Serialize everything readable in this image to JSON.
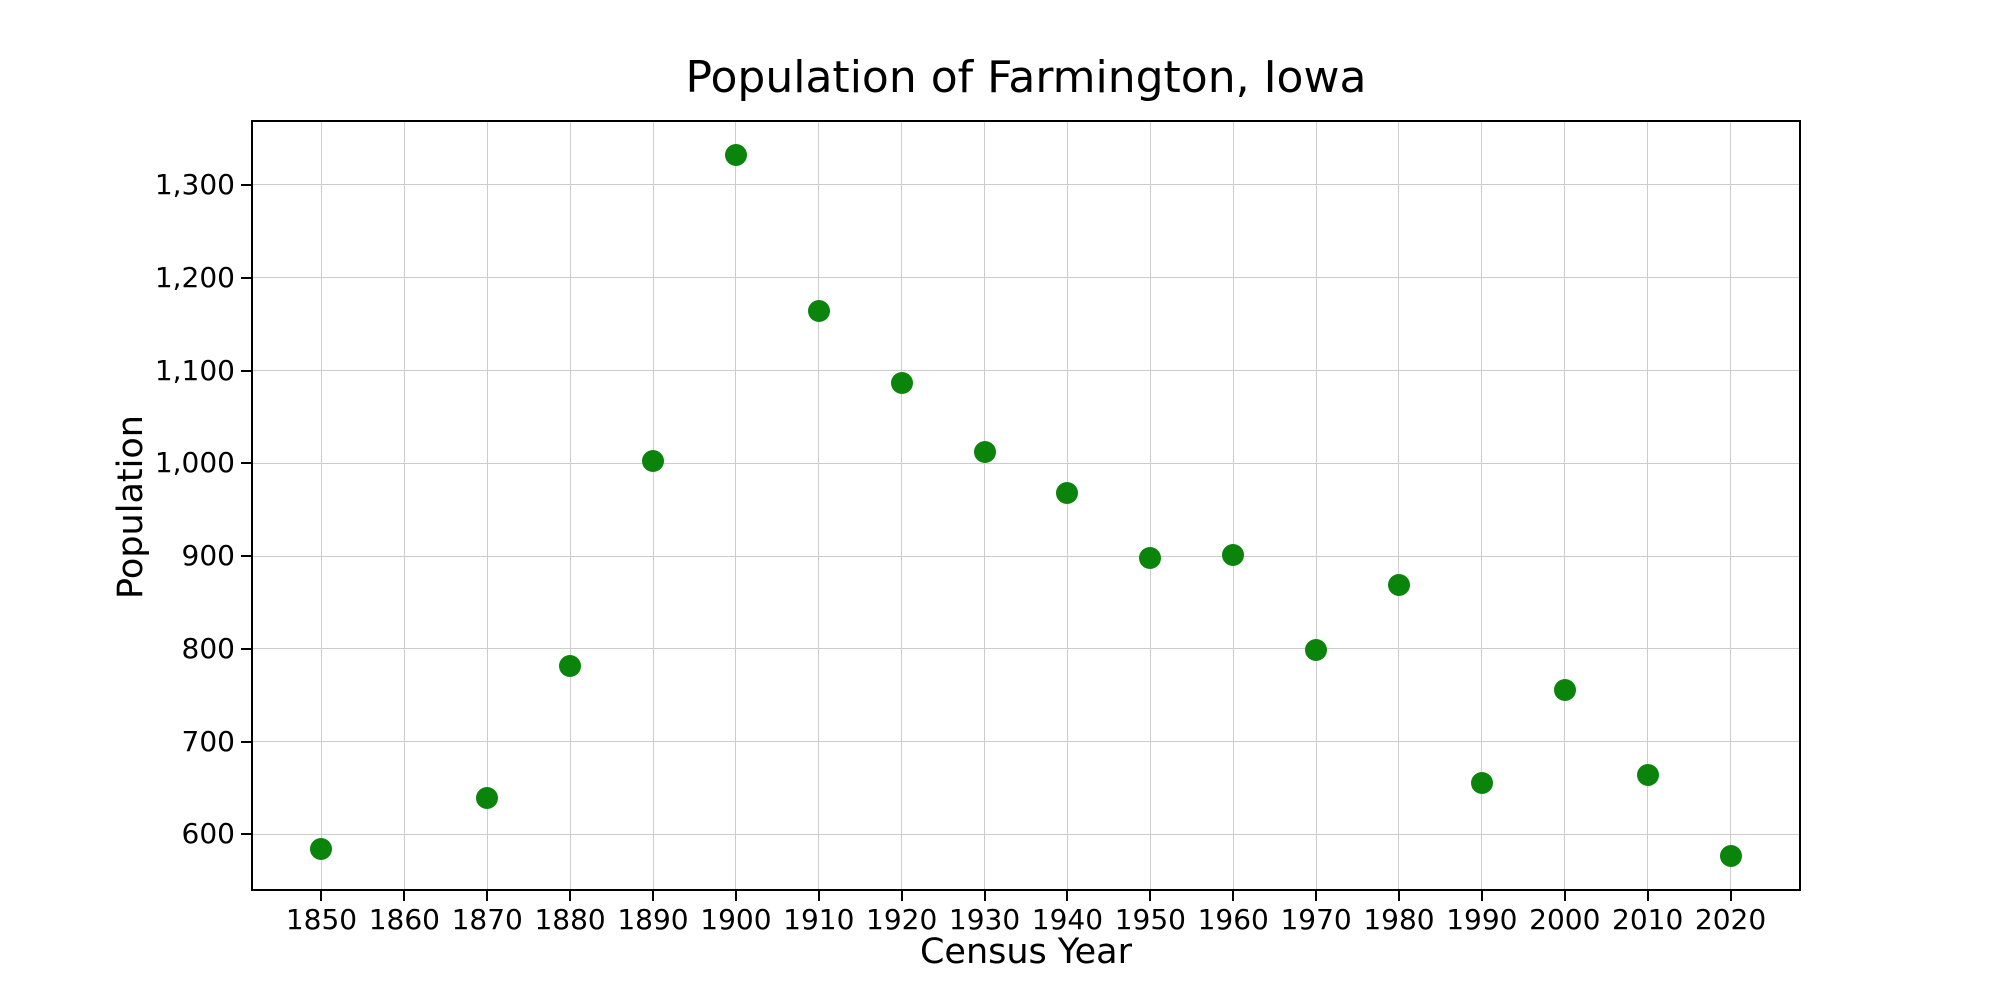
{
  "figure": {
    "title": "Population of Farmington, Iowa",
    "x_axis_label": "Census Year",
    "y_axis_label": "Population"
  },
  "chart_data": {
    "type": "scatter",
    "title": "Population of Farmington, Iowa",
    "xlabel": "Census Year",
    "ylabel": "Population",
    "x": [
      1850,
      1870,
      1880,
      1890,
      1900,
      1910,
      1920,
      1930,
      1940,
      1950,
      1960,
      1970,
      1980,
      1990,
      2000,
      2010,
      2020
    ],
    "y": [
      584,
      639,
      781,
      1002,
      1332,
      1164,
      1086,
      1012,
      968,
      898,
      901,
      799,
      869,
      655,
      756,
      664,
      577
    ],
    "x_ticks": [
      1850,
      1860,
      1870,
      1880,
      1890,
      1900,
      1910,
      1920,
      1930,
      1940,
      1950,
      1960,
      1970,
      1980,
      1990,
      2000,
      2010,
      2020
    ],
    "x_tick_labels": [
      "1850",
      "1860",
      "1870",
      "1880",
      "1890",
      "1900",
      "1910",
      "1920",
      "1930",
      "1940",
      "1950",
      "1960",
      "1970",
      "1980",
      "1990",
      "2000",
      "2010",
      "2020"
    ],
    "y_ticks": [
      600,
      700,
      800,
      900,
      1000,
      1100,
      1200,
      1300
    ],
    "y_tick_labels": [
      "600",
      "700",
      "800",
      "900",
      "1,000",
      "1,100",
      "1,200",
      "1,300"
    ],
    "xlim": [
      1841.5,
      2028.5
    ],
    "ylim": [
      539,
      1370
    ],
    "grid": true,
    "legend": null,
    "marker": {
      "shape": "circle",
      "color": "#0a840a",
      "radius_px": 11
    },
    "grid_color": "#cccccc",
    "spine_color": "#000000"
  }
}
